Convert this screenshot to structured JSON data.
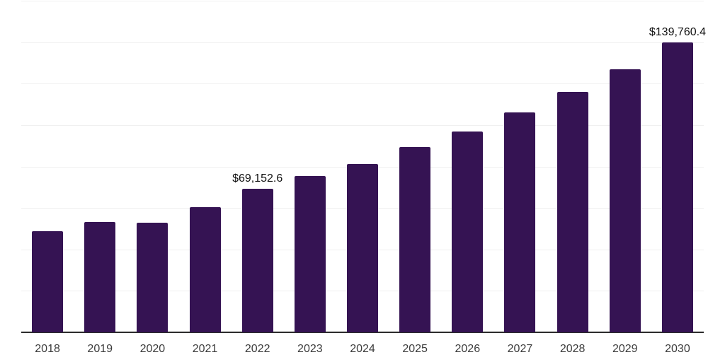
{
  "chart_data": {
    "type": "bar",
    "title": "",
    "xlabel": "",
    "ylabel": "",
    "categories": [
      "2018",
      "2019",
      "2020",
      "2021",
      "2022",
      "2023",
      "2024",
      "2025",
      "2026",
      "2027",
      "2028",
      "2029",
      "2030"
    ],
    "values": [
      48700,
      53100,
      52800,
      60300,
      69152.6,
      75300,
      81100,
      89400,
      96900,
      106000,
      115900,
      126800,
      139760.4
    ],
    "ylim": [
      0,
      160000
    ],
    "gridline_step": 20000,
    "grid": true,
    "legend": "none",
    "bar_color": "#351353",
    "annotations": [
      {
        "index": 4,
        "label": "$69,152.6"
      },
      {
        "index": 12,
        "label": "$139,760.4"
      }
    ]
  },
  "colors": {
    "background": "#ffffff",
    "bar": "#351353",
    "gridline": "#f0f0f0",
    "axis_line": "#2b2b2b",
    "tick_label": "#3c3c3c",
    "annotation": "#111111"
  }
}
